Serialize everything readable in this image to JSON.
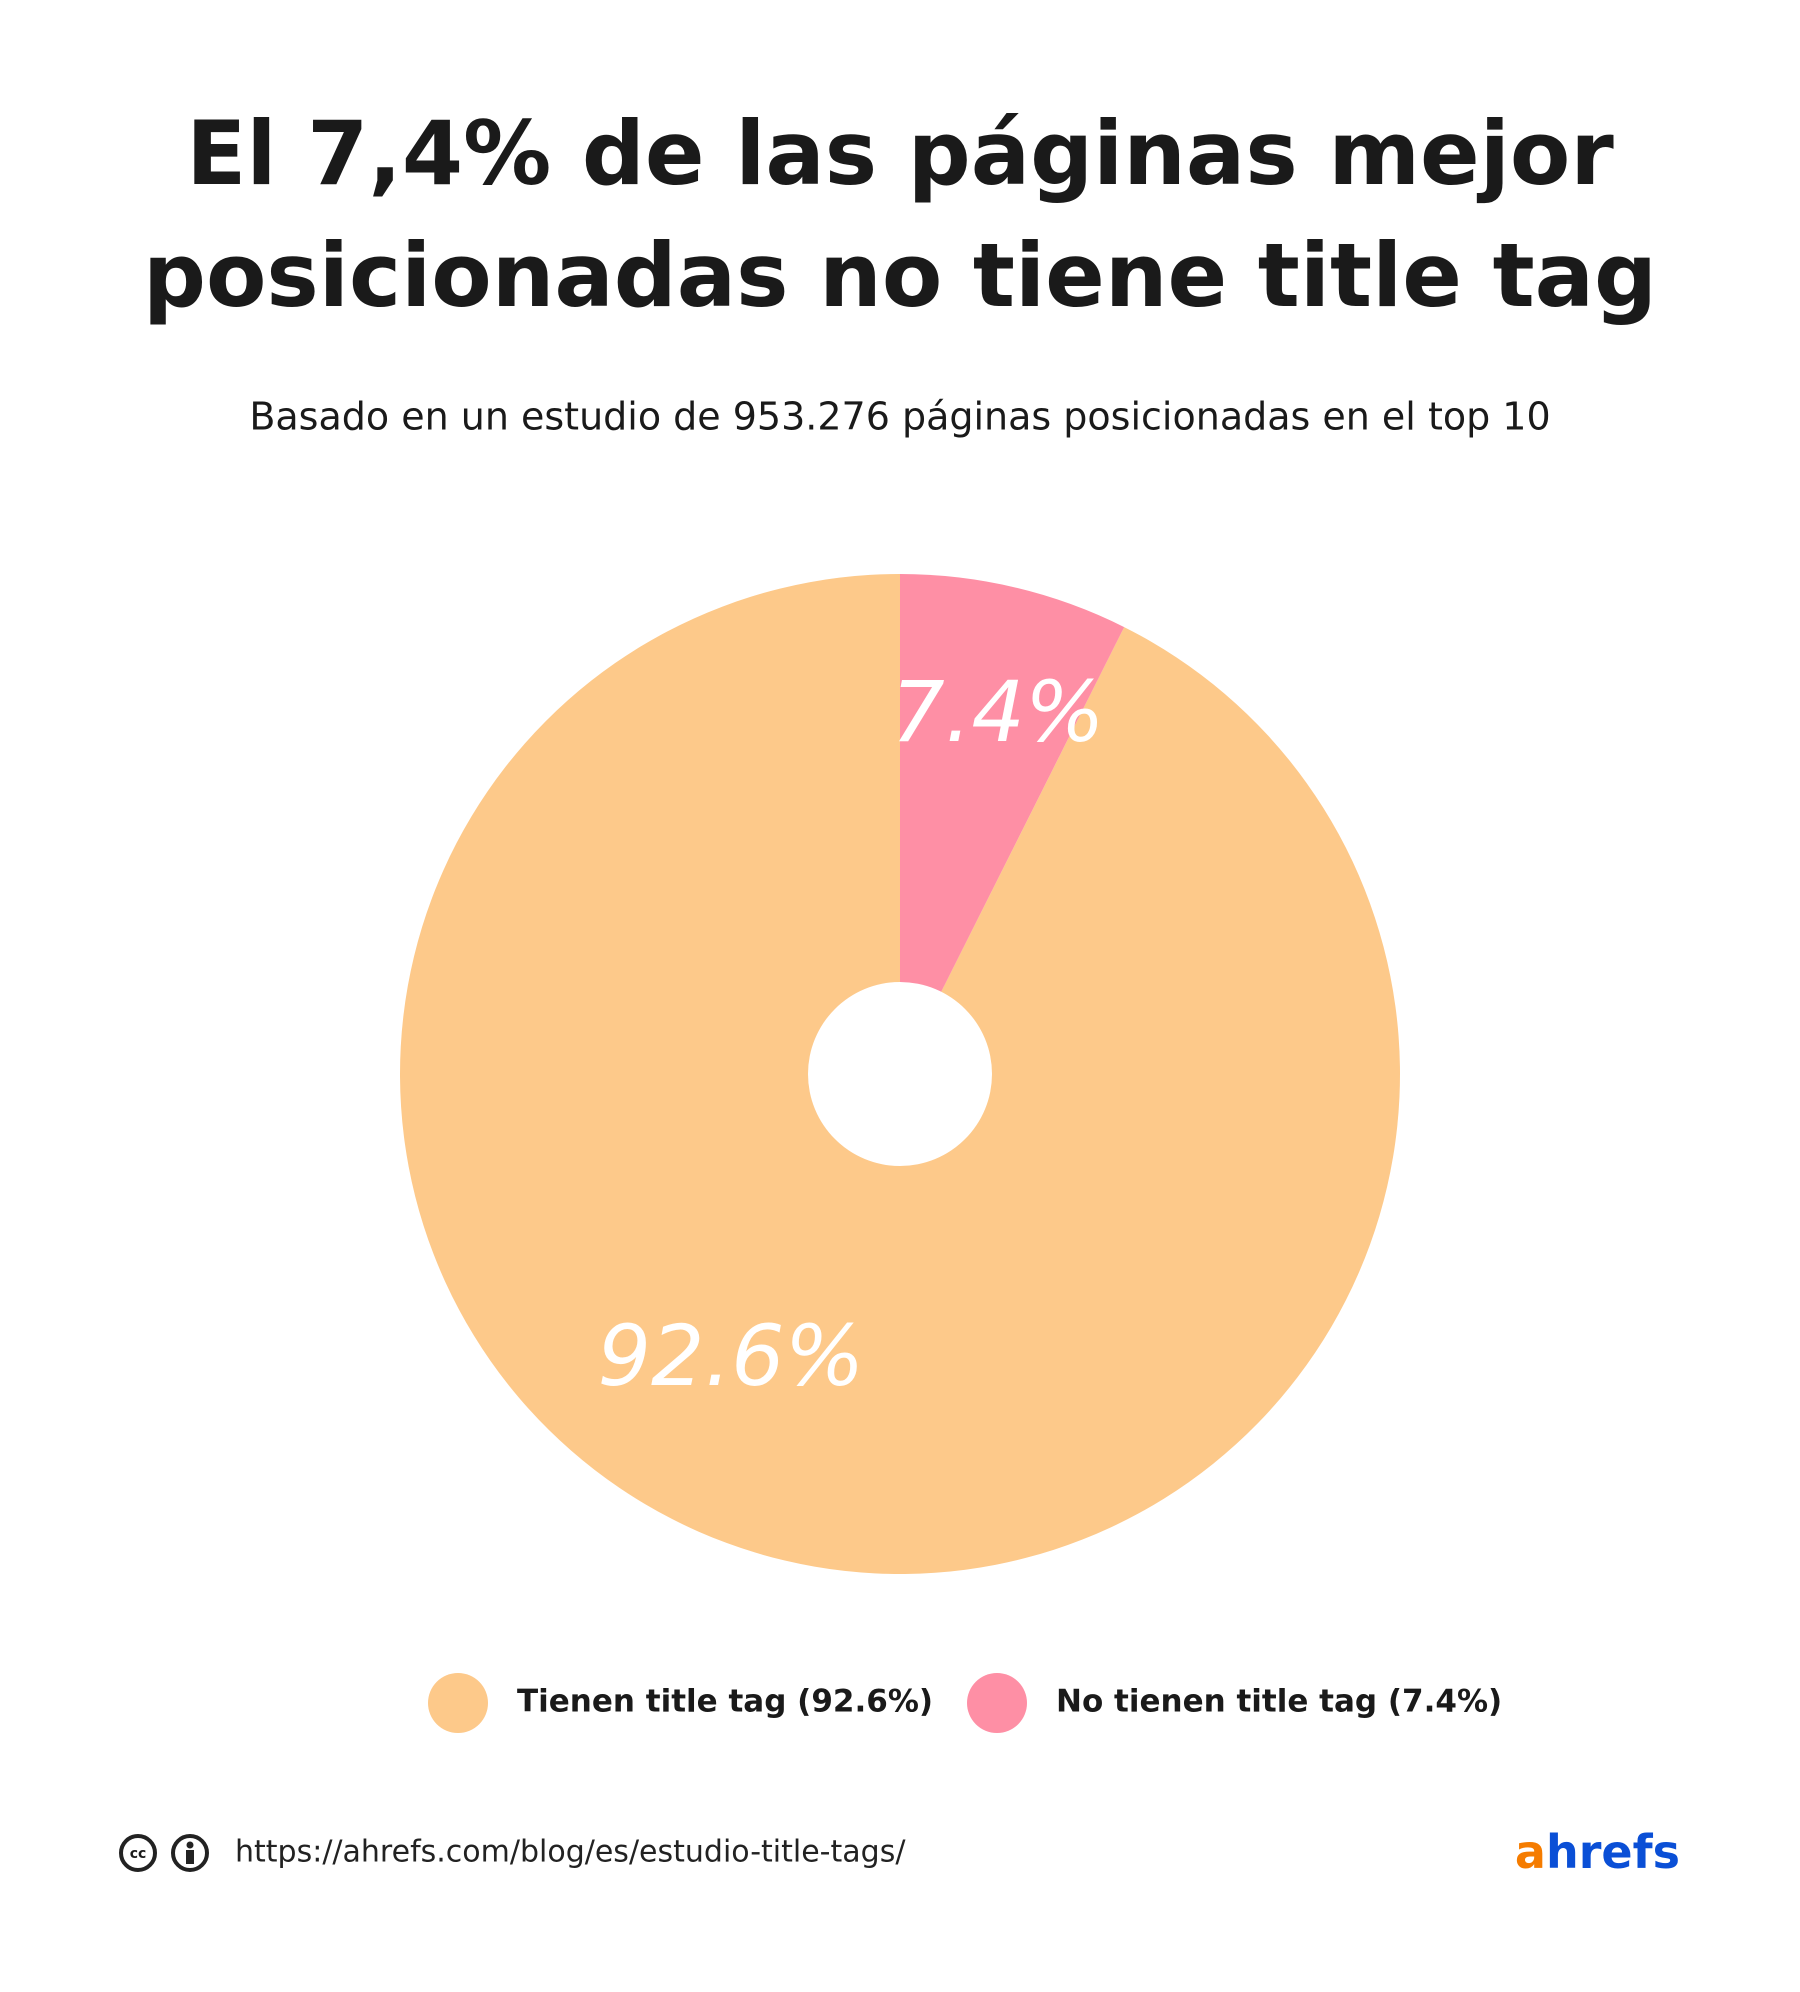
{
  "chart_data": {
    "type": "pie",
    "title": [
      "El 7,4% de las páginas mejor",
      "posicionadas no tiene title tag"
    ],
    "subtitle": "Basado en un estudio de 953.276 páginas posicionadas en el top 10",
    "categories": [
      "Tienen title tag (92.6%)",
      "No tienen title tag (7.4%)"
    ],
    "values": [
      92.6,
      7.4
    ],
    "value_labels": [
      "92.6%",
      "7.4%"
    ],
    "colors": [
      "#fdc98a",
      "#fe8fa5"
    ]
  },
  "footer": {
    "url": "https://ahrefs.com/blog/es/estudio-title-tags/",
    "logo": [
      "a",
      "hrefs"
    ]
  }
}
